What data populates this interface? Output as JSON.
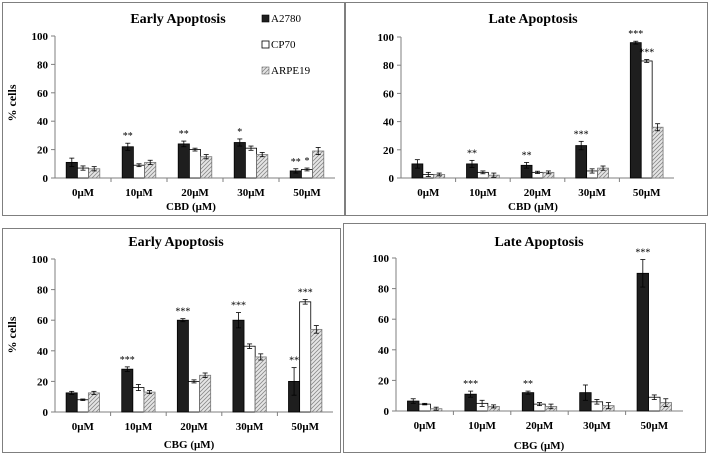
{
  "legend": {
    "items": [
      {
        "series": "A2780",
        "label": "A2780"
      },
      {
        "series": "CP70",
        "label": "CP70"
      },
      {
        "series": "ARPE19",
        "label": "ARPE19"
      }
    ]
  },
  "colors": {
    "A2780": "#1e1e1e",
    "CP70": "#ffffff",
    "ARPE19": "#c8c8c8",
    "frame": "#7f7f7f",
    "axis": "#7f7f7f"
  },
  "chart_data": [
    {
      "id": "cbd-early",
      "type": "bar",
      "title": "Early Apoptosis",
      "xlabel": "CBD (μM)",
      "ylabel": "% cells",
      "ylim": [
        0,
        100
      ],
      "yticks": [
        0,
        20,
        40,
        60,
        80,
        100
      ],
      "categories": [
        "0μM",
        "10μM",
        "20μM",
        "30μM",
        "50μM"
      ],
      "series": [
        {
          "name": "A2780",
          "values": [
            11,
            22,
            24,
            25,
            5
          ],
          "errors": [
            3,
            2.5,
            2,
            2.5,
            1.5
          ],
          "sig": [
            "",
            "**",
            "**",
            "*",
            "**"
          ]
        },
        {
          "name": "CP70",
          "values": [
            7,
            9,
            20,
            21,
            6
          ],
          "errors": [
            1.5,
            1,
            1,
            1.5,
            1
          ],
          "sig": [
            "",
            "",
            "",
            "",
            "*"
          ]
        },
        {
          "name": "ARPE19",
          "values": [
            6.5,
            11,
            15,
            16.5,
            19
          ],
          "errors": [
            1.5,
            1.5,
            1.5,
            1.5,
            2.5
          ],
          "sig": [
            "",
            "",
            "",
            "",
            ""
          ]
        }
      ]
    },
    {
      "id": "cbd-late",
      "type": "bar",
      "title": "Late Apoptosis",
      "xlabel": "CBD (μM)",
      "ylabel": "",
      "ylim": [
        0,
        100
      ],
      "yticks": [
        0,
        20,
        40,
        60,
        80,
        100
      ],
      "categories": [
        "0μM",
        "10μM",
        "20μM",
        "30μM",
        "50μM"
      ],
      "series": [
        {
          "name": "A2780",
          "values": [
            10,
            10,
            9,
            23,
            96
          ],
          "errors": [
            3,
            2.5,
            2,
            3,
            1
          ],
          "sig": [
            "",
            "**",
            "**",
            "***",
            "***"
          ]
        },
        {
          "name": "CP70",
          "values": [
            2.5,
            4,
            4,
            5,
            83
          ],
          "errors": [
            1.5,
            1,
            0.8,
            1.5,
            1
          ],
          "sig": [
            "",
            "",
            "",
            "",
            "***"
          ]
        },
        {
          "name": "ARPE19",
          "values": [
            2.5,
            2,
            4,
            7,
            36
          ],
          "errors": [
            1,
            1.5,
            1,
            1.5,
            2.5
          ],
          "sig": [
            "",
            "",
            "",
            "",
            ""
          ]
        }
      ]
    },
    {
      "id": "cbg-early",
      "type": "bar",
      "title": "Early Apoptosis",
      "xlabel": "CBG (μM)",
      "ylabel": "% cells",
      "ylim": [
        0,
        100
      ],
      "yticks": [
        0,
        20,
        40,
        60,
        80,
        100
      ],
      "categories": [
        "0μM",
        "10μM",
        "20μM",
        "30μM",
        "50μM"
      ],
      "series": [
        {
          "name": "A2780",
          "values": [
            12.5,
            28,
            60,
            60,
            20
          ],
          "errors": [
            1,
            1.5,
            1,
            5,
            9
          ],
          "sig": [
            "",
            "***",
            "***",
            "***",
            "**"
          ]
        },
        {
          "name": "CP70",
          "values": [
            8,
            16,
            20,
            43,
            72
          ],
          "errors": [
            0.5,
            2,
            1,
            1.5,
            1.5
          ],
          "sig": [
            "",
            "",
            "",
            "",
            "***"
          ]
        },
        {
          "name": "ARPE19",
          "values": [
            12.5,
            13,
            24,
            36,
            54
          ],
          "errors": [
            1,
            1,
            1.5,
            2,
            2.5
          ],
          "sig": [
            "",
            "",
            "",
            "",
            ""
          ]
        }
      ]
    },
    {
      "id": "cbg-late",
      "type": "bar",
      "title": "Late Apoptosis",
      "xlabel": "CBG (μM)",
      "ylabel": "",
      "ylim": [
        0,
        100
      ],
      "yticks": [
        0,
        20,
        40,
        60,
        80,
        100
      ],
      "categories": [
        "0μM",
        "10μM",
        "20μM",
        "30μM",
        "50μM"
      ],
      "series": [
        {
          "name": "A2780",
          "values": [
            6.5,
            11,
            12,
            12,
            90
          ],
          "errors": [
            1.5,
            2,
            1,
            5,
            9
          ],
          "sig": [
            "",
            "***",
            "**",
            "",
            "***"
          ]
        },
        {
          "name": "CP70",
          "values": [
            4.5,
            5,
            4.5,
            6,
            9
          ],
          "errors": [
            0.5,
            2,
            1,
            1.5,
            1.5
          ],
          "sig": [
            "",
            "",
            "",
            "",
            ""
          ]
        },
        {
          "name": "ARPE19",
          "values": [
            1.5,
            3,
            3,
            3.5,
            5.5
          ],
          "errors": [
            1,
            1,
            1.5,
            2,
            2.5
          ],
          "sig": [
            "",
            "",
            "",
            "",
            ""
          ]
        }
      ]
    }
  ]
}
